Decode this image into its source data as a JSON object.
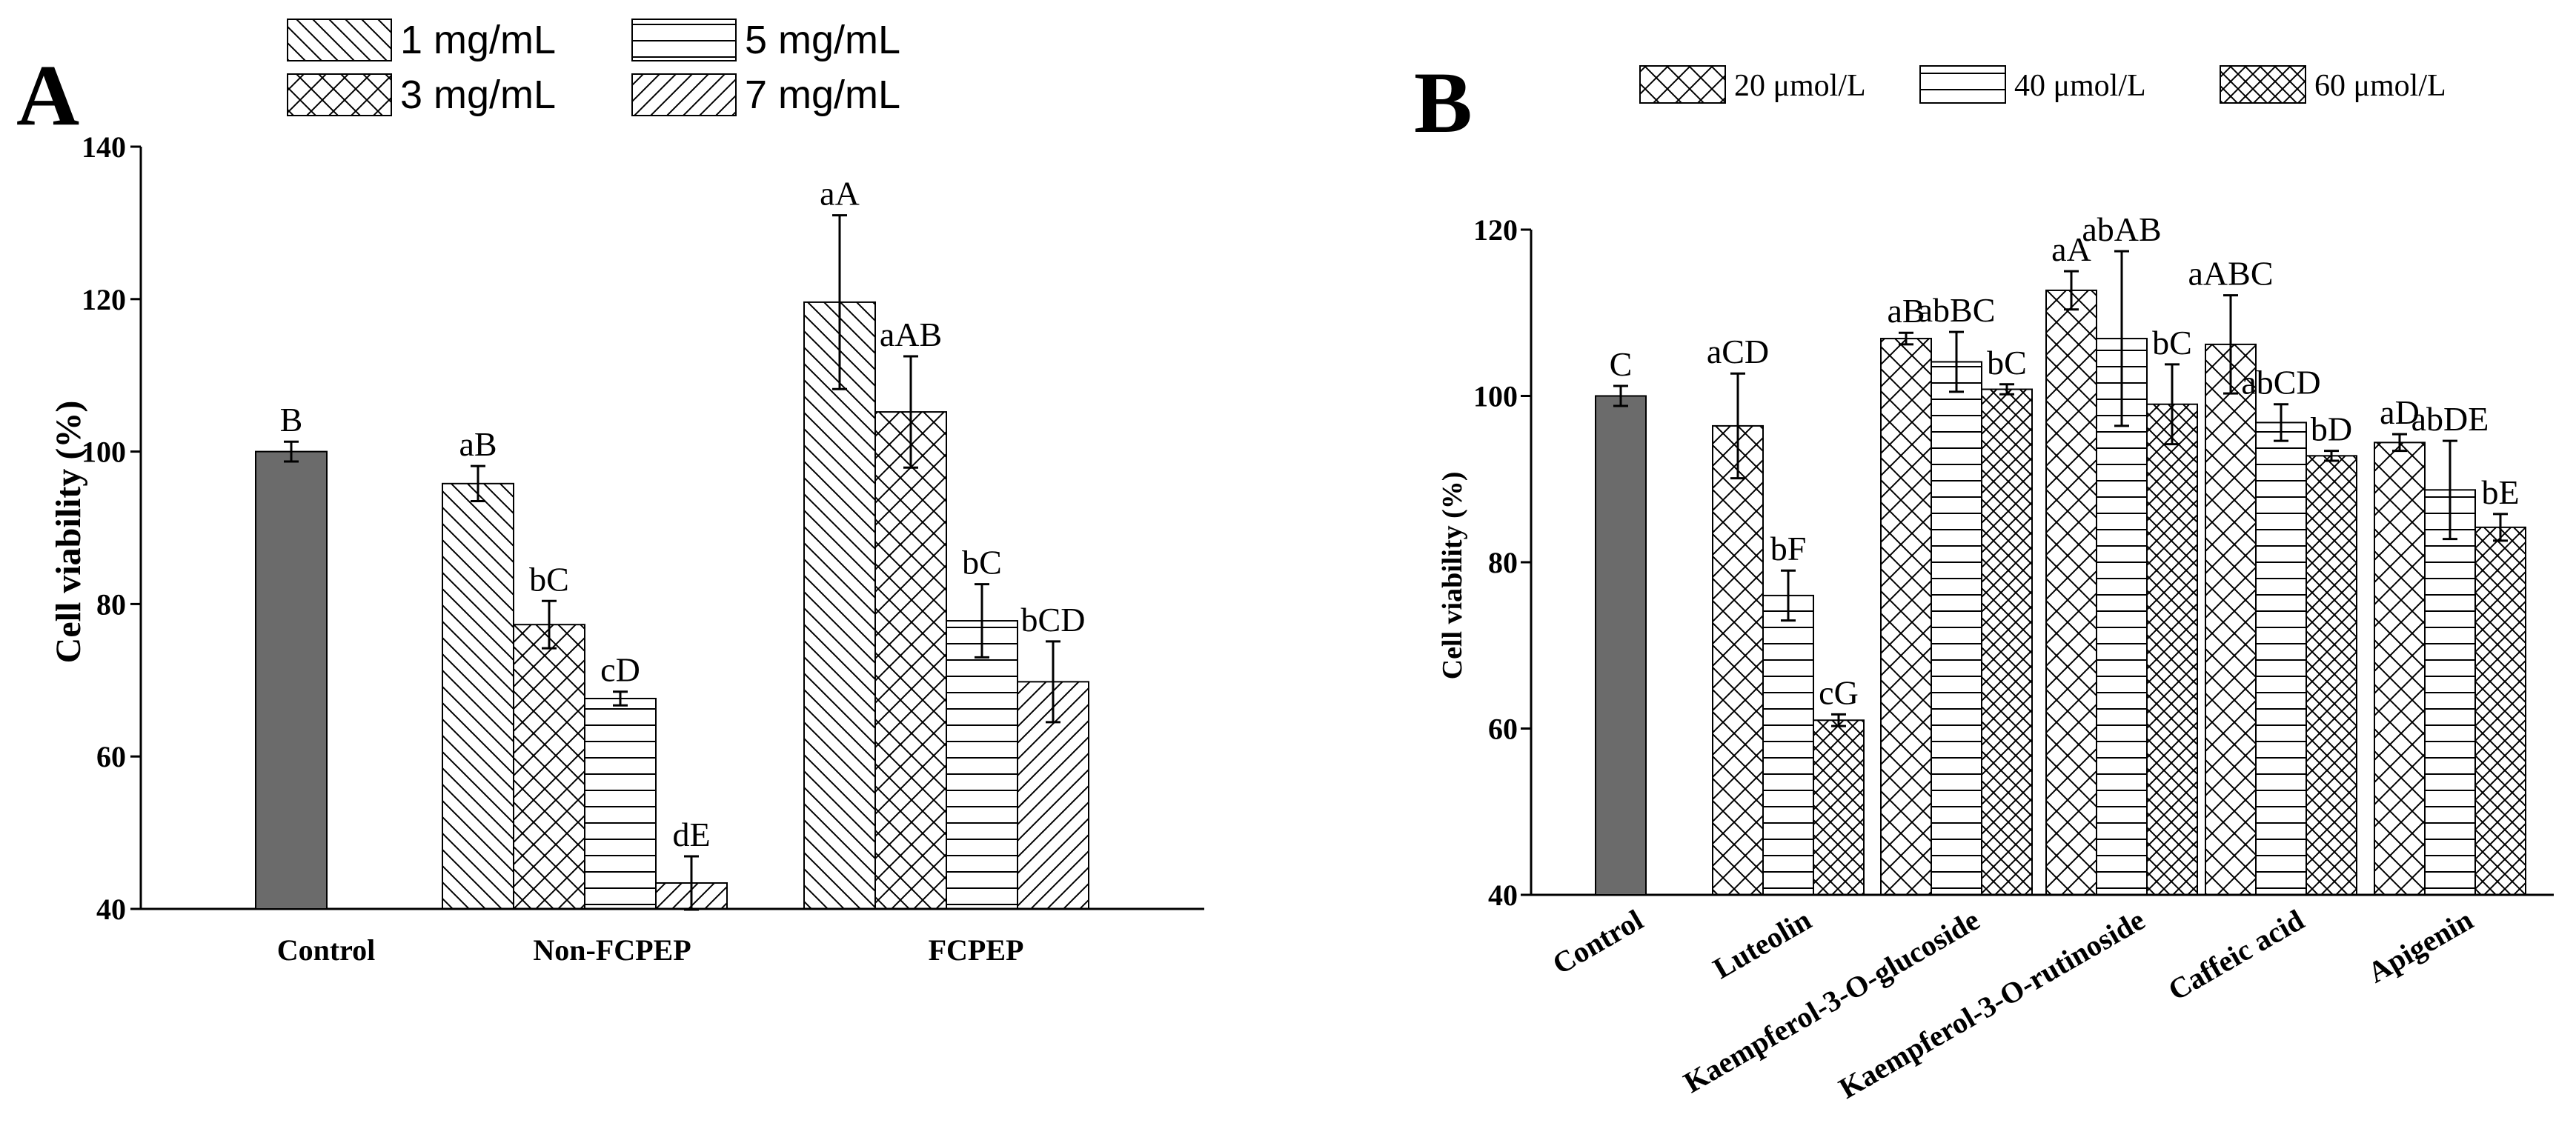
{
  "panels": {
    "A": {
      "label": "A"
    },
    "B": {
      "label": "B"
    }
  },
  "colors": {
    "control_fill": "#6b6b6b",
    "stroke": "#000000",
    "background": "#ffffff"
  },
  "chart_data": [
    {
      "id": "A",
      "type": "bar",
      "title": "",
      "xlabel": "",
      "ylabel": "Cell viability (%)",
      "ylim": [
        40,
        140
      ],
      "yticks": [
        40,
        60,
        80,
        100,
        120,
        140
      ],
      "legend": {
        "placement": "top",
        "items": [
          {
            "name": "1 mg/mL",
            "pattern": "diag-down"
          },
          {
            "name": "5 mg/mL",
            "pattern": "hlines"
          },
          {
            "name": "3 mg/mL",
            "pattern": "cross"
          },
          {
            "name": "7 mg/mL",
            "pattern": "diag-up"
          }
        ]
      },
      "groups": [
        {
          "category": "Control",
          "bars": [
            {
              "series": "Control",
              "value": 100,
              "error": 1.3,
              "label": "B",
              "pattern": "solid"
            }
          ]
        },
        {
          "category": "Non-FCPEP",
          "bars": [
            {
              "series": "1 mg/mL",
              "value": 95.8,
              "error": 2.3,
              "label": "aB",
              "pattern": "diag-down"
            },
            {
              "series": "3 mg/mL",
              "value": 77.3,
              "error": 3.1,
              "label": "bC",
              "pattern": "cross"
            },
            {
              "series": "5 mg/mL",
              "value": 67.6,
              "error": 0.9,
              "label": "cD",
              "pattern": "hlines"
            },
            {
              "series": "7 mg/mL",
              "value": 43.4,
              "error": 3.5,
              "label": "dE",
              "pattern": "diag-up"
            }
          ]
        },
        {
          "category": "FCPEP",
          "bars": [
            {
              "series": "1 mg/mL",
              "value": 119.6,
              "error": 11.4,
              "label": "aA",
              "pattern": "diag-down"
            },
            {
              "series": "3 mg/mL",
              "value": 105.2,
              "error": 7.3,
              "label": "aAB",
              "pattern": "cross"
            },
            {
              "series": "5 mg/mL",
              "value": 77.8,
              "error": 4.8,
              "label": "bC",
              "pattern": "hlines"
            },
            {
              "series": "7 mg/mL",
              "value": 69.8,
              "error": 5.3,
              "label": "bCD",
              "pattern": "diag-up"
            }
          ]
        }
      ]
    },
    {
      "id": "B",
      "type": "bar",
      "title": "",
      "xlabel": "",
      "ylabel": "Cell viability (%)",
      "ylim": [
        40,
        120
      ],
      "yticks": [
        40,
        60,
        80,
        100,
        120
      ],
      "legend": {
        "placement": "top",
        "items": [
          {
            "name": "20 μmol/L",
            "pattern": "cross"
          },
          {
            "name": "40 μmol/L",
            "pattern": "hlines"
          },
          {
            "name": "60 μmol/L",
            "pattern": "cross-dense"
          }
        ]
      },
      "groups": [
        {
          "category": "Control",
          "bars": [
            {
              "series": "Control",
              "value": 100,
              "error": 1.2,
              "label": "C",
              "pattern": "solid"
            }
          ]
        },
        {
          "category": "Luteolin",
          "bars": [
            {
              "series": "20 μmol/L",
              "value": 96.4,
              "error": 6.3,
              "label": "aCD",
              "pattern": "cross"
            },
            {
              "series": "40 μmol/L",
              "value": 76.0,
              "error": 3.0,
              "label": "bF",
              "pattern": "hlines"
            },
            {
              "series": "60 μmol/L",
              "value": 61.0,
              "error": 0.7,
              "label": "cG",
              "pattern": "cross-dense"
            }
          ]
        },
        {
          "category": "Kaempferol-3-O-glucoside",
          "bars": [
            {
              "series": "20 μmol/L",
              "value": 106.9,
              "error": 0.7,
              "label": "aB",
              "pattern": "cross"
            },
            {
              "series": "40 μmol/L",
              "value": 104.1,
              "error": 3.6,
              "label": "abBC",
              "pattern": "hlines"
            },
            {
              "series": "60 μmol/L",
              "value": 100.8,
              "error": 0.6,
              "label": "bC",
              "pattern": "cross-dense"
            }
          ]
        },
        {
          "category": "Kaempferol-3-O-rutinoside",
          "bars": [
            {
              "series": "20 μmol/L",
              "value": 112.7,
              "error": 2.3,
              "label": "aA",
              "pattern": "cross"
            },
            {
              "series": "40 μmol/L",
              "value": 106.9,
              "error": 10.5,
              "label": "abAB",
              "pattern": "hlines"
            },
            {
              "series": "60 μmol/L",
              "value": 99.0,
              "error": 4.8,
              "label": "bC",
              "pattern": "cross-dense"
            }
          ]
        },
        {
          "category": "Caffeic acid",
          "bars": [
            {
              "series": "20 μmol/L",
              "value": 106.2,
              "error": 5.9,
              "label": "aABC",
              "pattern": "cross"
            },
            {
              "series": "40 μmol/L",
              "value": 96.8,
              "error": 2.2,
              "label": "abCD",
              "pattern": "hlines"
            },
            {
              "series": "60 μmol/L",
              "value": 92.8,
              "error": 0.6,
              "label": "bD",
              "pattern": "cross-dense"
            }
          ]
        },
        {
          "category": "Apigenin",
          "bars": [
            {
              "series": "20 μmol/L",
              "value": 94.4,
              "error": 1.0,
              "label": "aD",
              "pattern": "cross"
            },
            {
              "series": "40 μmol/L",
              "value": 88.7,
              "error": 5.9,
              "label": "abDE",
              "pattern": "hlines"
            },
            {
              "series": "60 μmol/L",
              "value": 84.2,
              "error": 1.6,
              "label": "bE",
              "pattern": "cross-dense"
            }
          ]
        }
      ]
    }
  ]
}
